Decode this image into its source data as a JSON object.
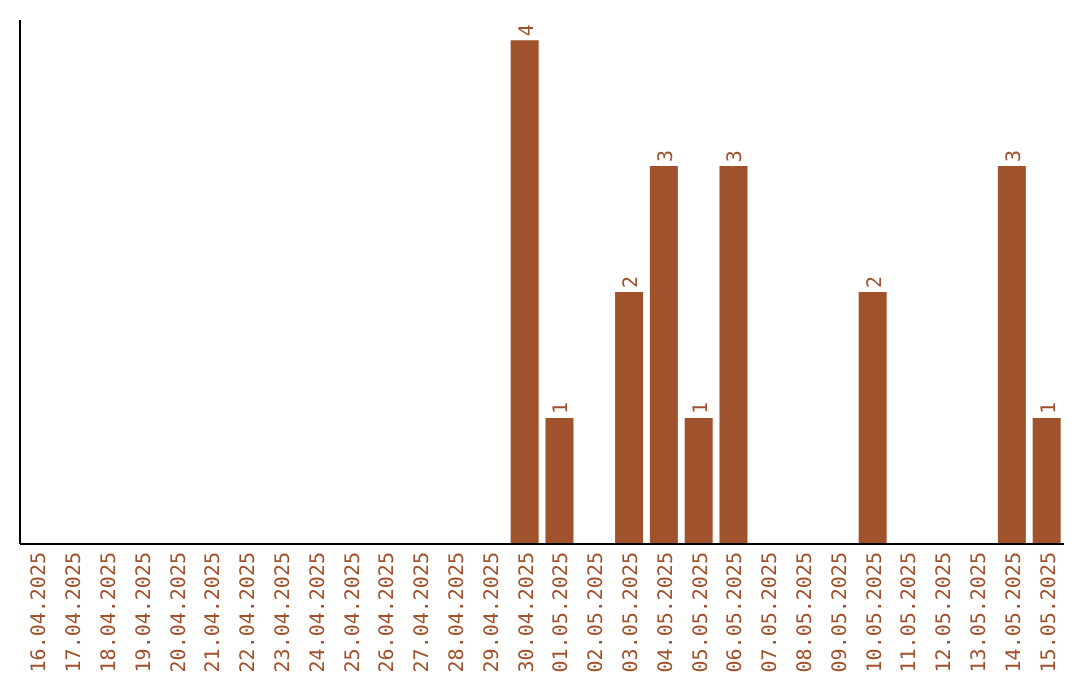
{
  "chart_data": {
    "type": "bar",
    "categories": [
      "16.04.2025",
      "17.04.2025",
      "18.04.2025",
      "19.04.2025",
      "20.04.2025",
      "21.04.2025",
      "22.04.2025",
      "23.04.2025",
      "24.04.2025",
      "25.04.2025",
      "26.04.2025",
      "27.04.2025",
      "28.04.2025",
      "29.04.2025",
      "30.04.2025",
      "01.05.2025",
      "02.05.2025",
      "03.05.2025",
      "04.05.2025",
      "05.05.2025",
      "06.05.2025",
      "07.05.2025",
      "08.05.2025",
      "09.05.2025",
      "10.05.2025",
      "11.05.2025",
      "12.05.2025",
      "13.05.2025",
      "14.05.2025",
      "15.05.2025"
    ],
    "values": [
      null,
      null,
      null,
      null,
      null,
      null,
      null,
      null,
      null,
      null,
      null,
      null,
      null,
      null,
      4,
      1,
      null,
      2,
      3,
      1,
      3,
      null,
      null,
      null,
      2,
      null,
      null,
      null,
      3,
      1
    ],
    "color": "#a0522d",
    "data_labels": true
  }
}
